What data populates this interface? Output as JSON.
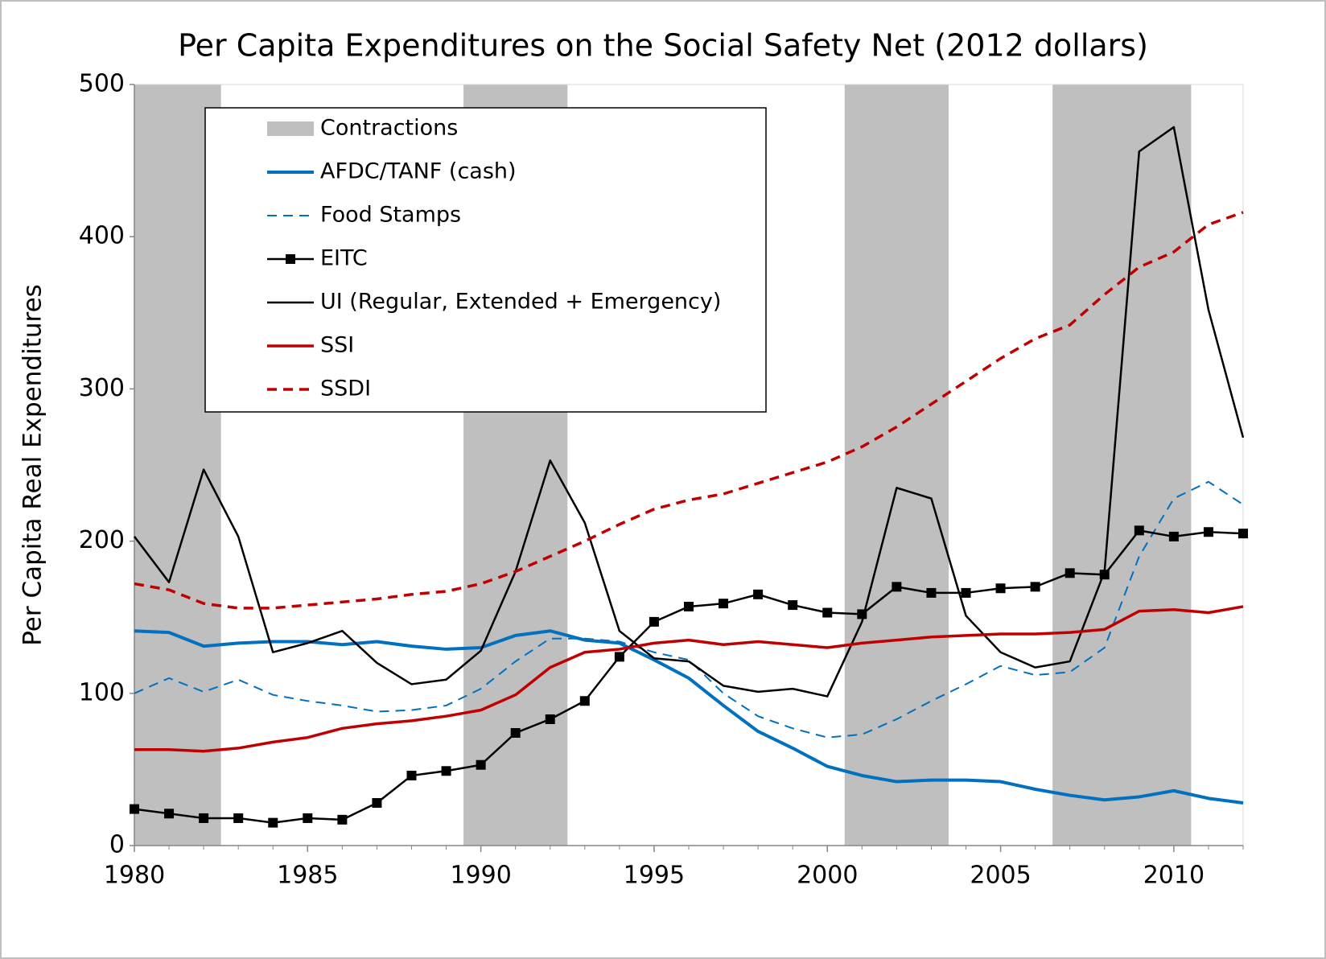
{
  "chart_data": {
    "type": "line",
    "title": "Per Capita Expenditures on the Social Safety Net (2012 dollars)",
    "y_label": "Per Capita Real Expenditures",
    "x": [
      1980,
      1981,
      1982,
      1983,
      1984,
      1985,
      1986,
      1987,
      1988,
      1989,
      1990,
      1991,
      1992,
      1993,
      1994,
      1995,
      1996,
      1997,
      1998,
      1999,
      2000,
      2001,
      2002,
      2003,
      2004,
      2005,
      2006,
      2007,
      2008,
      2009,
      2010,
      2011,
      2012
    ],
    "xlim": [
      1980,
      2012
    ],
    "xticks": [
      1980,
      1985,
      1990,
      1995,
      2000,
      2005,
      2010
    ],
    "ylim": [
      0,
      500
    ],
    "yticks": [
      0,
      100,
      200,
      300,
      400,
      500
    ],
    "legend": "upper left",
    "shaded_periods": {
      "name": "Contractions",
      "color": "#bfbfbf",
      "periods": [
        [
          1980,
          1982.5
        ],
        [
          1989.5,
          1992.5
        ],
        [
          2000.5,
          2003.5
        ],
        [
          2006.5,
          2010.5
        ]
      ]
    },
    "series": [
      {
        "name": "AFDC/TANF (cash)",
        "color": "#0070c0",
        "width": 4,
        "dashed": false,
        "marker": null,
        "values": [
          141,
          140,
          131,
          133,
          134,
          134,
          132,
          134,
          131,
          129,
          130,
          138,
          141,
          135,
          133,
          122,
          110,
          92,
          75,
          64,
          52,
          46,
          42,
          43,
          43,
          42,
          37,
          33,
          30,
          32,
          36,
          31,
          28
        ]
      },
      {
        "name": "Food Stamps",
        "color": "#0070c0",
        "width": 2,
        "dashed": true,
        "marker": null,
        "values": [
          100,
          110,
          101,
          109,
          99,
          95,
          92,
          88,
          89,
          92,
          103,
          121,
          136,
          136,
          134,
          127,
          122,
          100,
          85,
          77,
          71,
          73,
          83,
          95,
          106,
          118,
          112,
          114,
          130,
          190,
          228,
          239,
          224
        ]
      },
      {
        "name": "EITC",
        "color": "#000000",
        "width": 2.5,
        "dashed": false,
        "marker": "square",
        "values": [
          24,
          21,
          18,
          18,
          15,
          18,
          17,
          28,
          46,
          49,
          53,
          74,
          83,
          95,
          124,
          147,
          157,
          159,
          165,
          158,
          153,
          152,
          170,
          166,
          166,
          169,
          170,
          179,
          178,
          207,
          203,
          206,
          205
        ]
      },
      {
        "name": "UI (Regular, Extended + Emergency)",
        "color": "#000000",
        "width": 2.5,
        "dashed": false,
        "marker": null,
        "values": [
          203,
          173,
          247,
          203,
          127,
          133,
          141,
          120,
          106,
          109,
          128,
          180,
          253,
          212,
          141,
          123,
          121,
          105,
          101,
          103,
          98,
          147,
          235,
          228,
          151,
          127,
          117,
          121,
          180,
          456,
          472,
          352,
          268
        ]
      },
      {
        "name": "SSI",
        "color": "#c00000",
        "width": 3.5,
        "dashed": false,
        "marker": null,
        "values": [
          63,
          63,
          62,
          64,
          68,
          71,
          77,
          80,
          82,
          85,
          89,
          99,
          117,
          127,
          129,
          133,
          135,
          132,
          134,
          132,
          130,
          133,
          135,
          137,
          138,
          139,
          139,
          140,
          142,
          154,
          155,
          153,
          157
        ]
      },
      {
        "name": "SSDI",
        "color": "#c00000",
        "width": 3.5,
        "dashed": true,
        "marker": null,
        "values": [
          172,
          168,
          159,
          156,
          156,
          158,
          160,
          162,
          165,
          167,
          172,
          180,
          190,
          200,
          211,
          221,
          227,
          231,
          238,
          245,
          252,
          262,
          275,
          290,
          305,
          320,
          333,
          342,
          362,
          380,
          390,
          408,
          416
        ]
      }
    ]
  }
}
